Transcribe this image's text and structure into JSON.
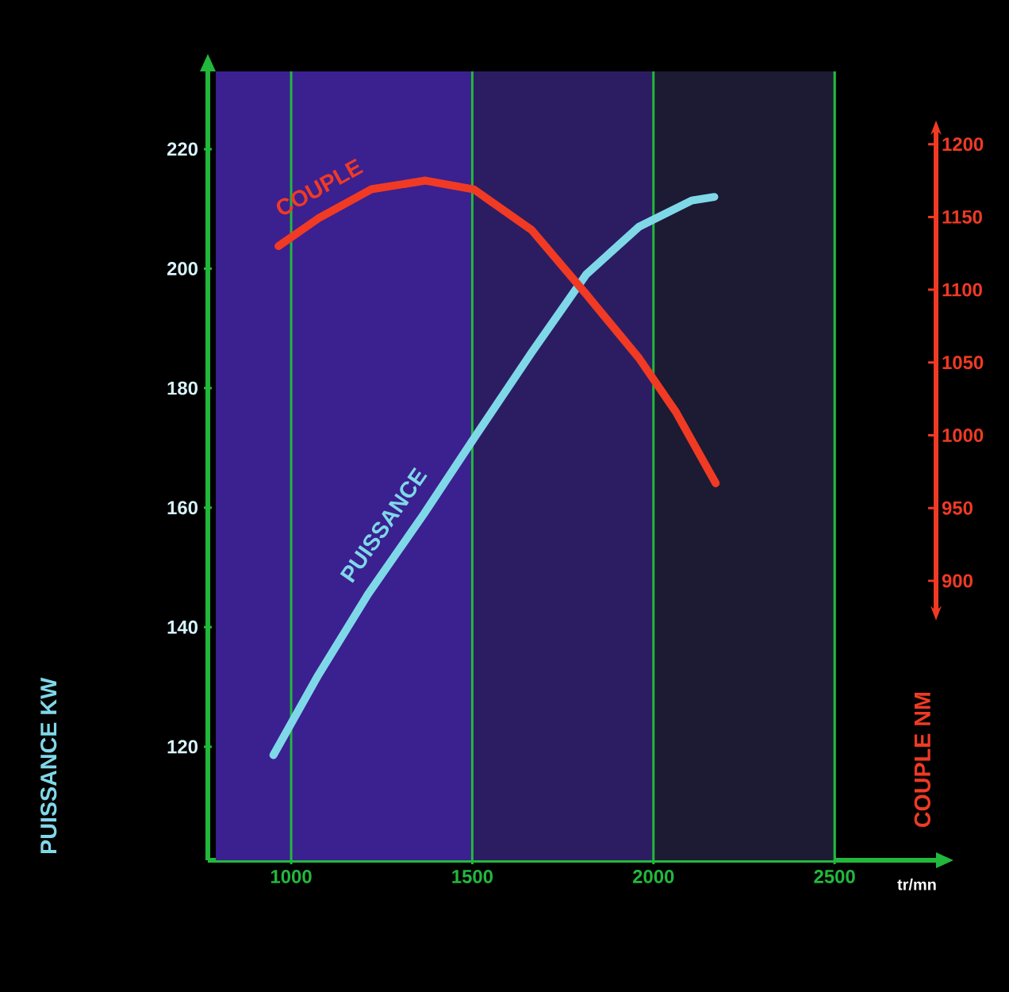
{
  "chart_data": {
    "type": "line",
    "xlabel": "tr/mn",
    "ylabel": "PUISSANCE KW",
    "y2label": "COUPLE NM",
    "xlim": [
      770,
      2780
    ],
    "xticks": [
      1000,
      1500,
      2000,
      2500
    ],
    "ylim": [
      101,
      233
    ],
    "yticks": [
      120,
      140,
      160,
      180,
      200,
      220
    ],
    "y2lim": [
      708,
      1250
    ],
    "y2ticks": [
      900,
      950,
      1000,
      1050,
      1100,
      1150,
      1200
    ],
    "grid": "x",
    "bands": [
      {
        "axis": "x",
        "from": 792,
        "to": 1500,
        "color": "#3b2090"
      },
      {
        "axis": "x",
        "from": 1500,
        "to": 2000,
        "color": "#2c1d63"
      },
      {
        "axis": "x",
        "from": 2000,
        "to": 2500,
        "color": "#1d1a33"
      }
    ],
    "series": [
      {
        "name": "PUISSANCE",
        "color": "#7fd8e8",
        "x": [
          951,
          1075,
          1212,
          1367,
          1509,
          1664,
          1814,
          1960,
          2106,
          2168
        ],
        "values": [
          118.6,
          132,
          145.5,
          159,
          172,
          186,
          199,
          207,
          211.4,
          212
        ]
      },
      {
        "name": "COUPLE",
        "color": "#f03a24",
        "axis": "y2",
        "x": [
          965,
          1075,
          1221,
          1371,
          1504,
          1664,
          1814,
          1960,
          2062,
          2172
        ],
        "values": [
          1130,
          1149,
          1169,
          1175,
          1169,
          1141,
          1097,
          1053,
          1016,
          967
        ]
      }
    ]
  }
}
